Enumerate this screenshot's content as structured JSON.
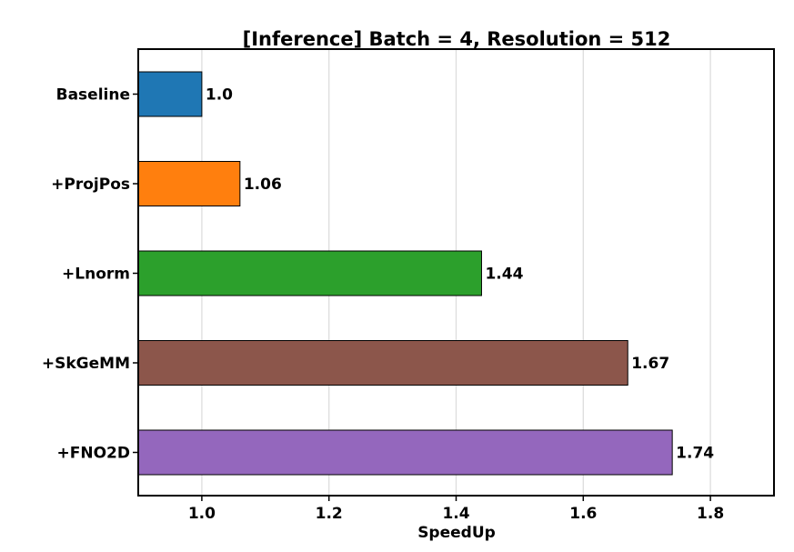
{
  "chart_data": {
    "type": "bar",
    "orientation": "horizontal",
    "title": "[Inference] Batch = 4, Resolution = 512",
    "xlabel": "SpeedUp",
    "ylabel": "",
    "categories": [
      "Baseline",
      "+ProjPos",
      "+Lnorm",
      "+SkGeMM",
      "+FNO2D"
    ],
    "values": [
      1.0,
      1.06,
      1.44,
      1.67,
      1.74
    ],
    "data_labels": [
      "1.0",
      "1.06",
      "1.44",
      "1.67",
      "1.74"
    ],
    "colors": [
      "#1f77b4",
      "#ff7f0e",
      "#2ca02c",
      "#8c564b",
      "#9467bd"
    ],
    "xlim": [
      0.9,
      1.9
    ],
    "xticks": [
      1.0,
      1.2,
      1.4,
      1.6,
      1.8
    ],
    "xtick_labels": [
      "1.0",
      "1.2",
      "1.4",
      "1.6",
      "1.8"
    ],
    "grid": "vertical",
    "legend": "none"
  }
}
